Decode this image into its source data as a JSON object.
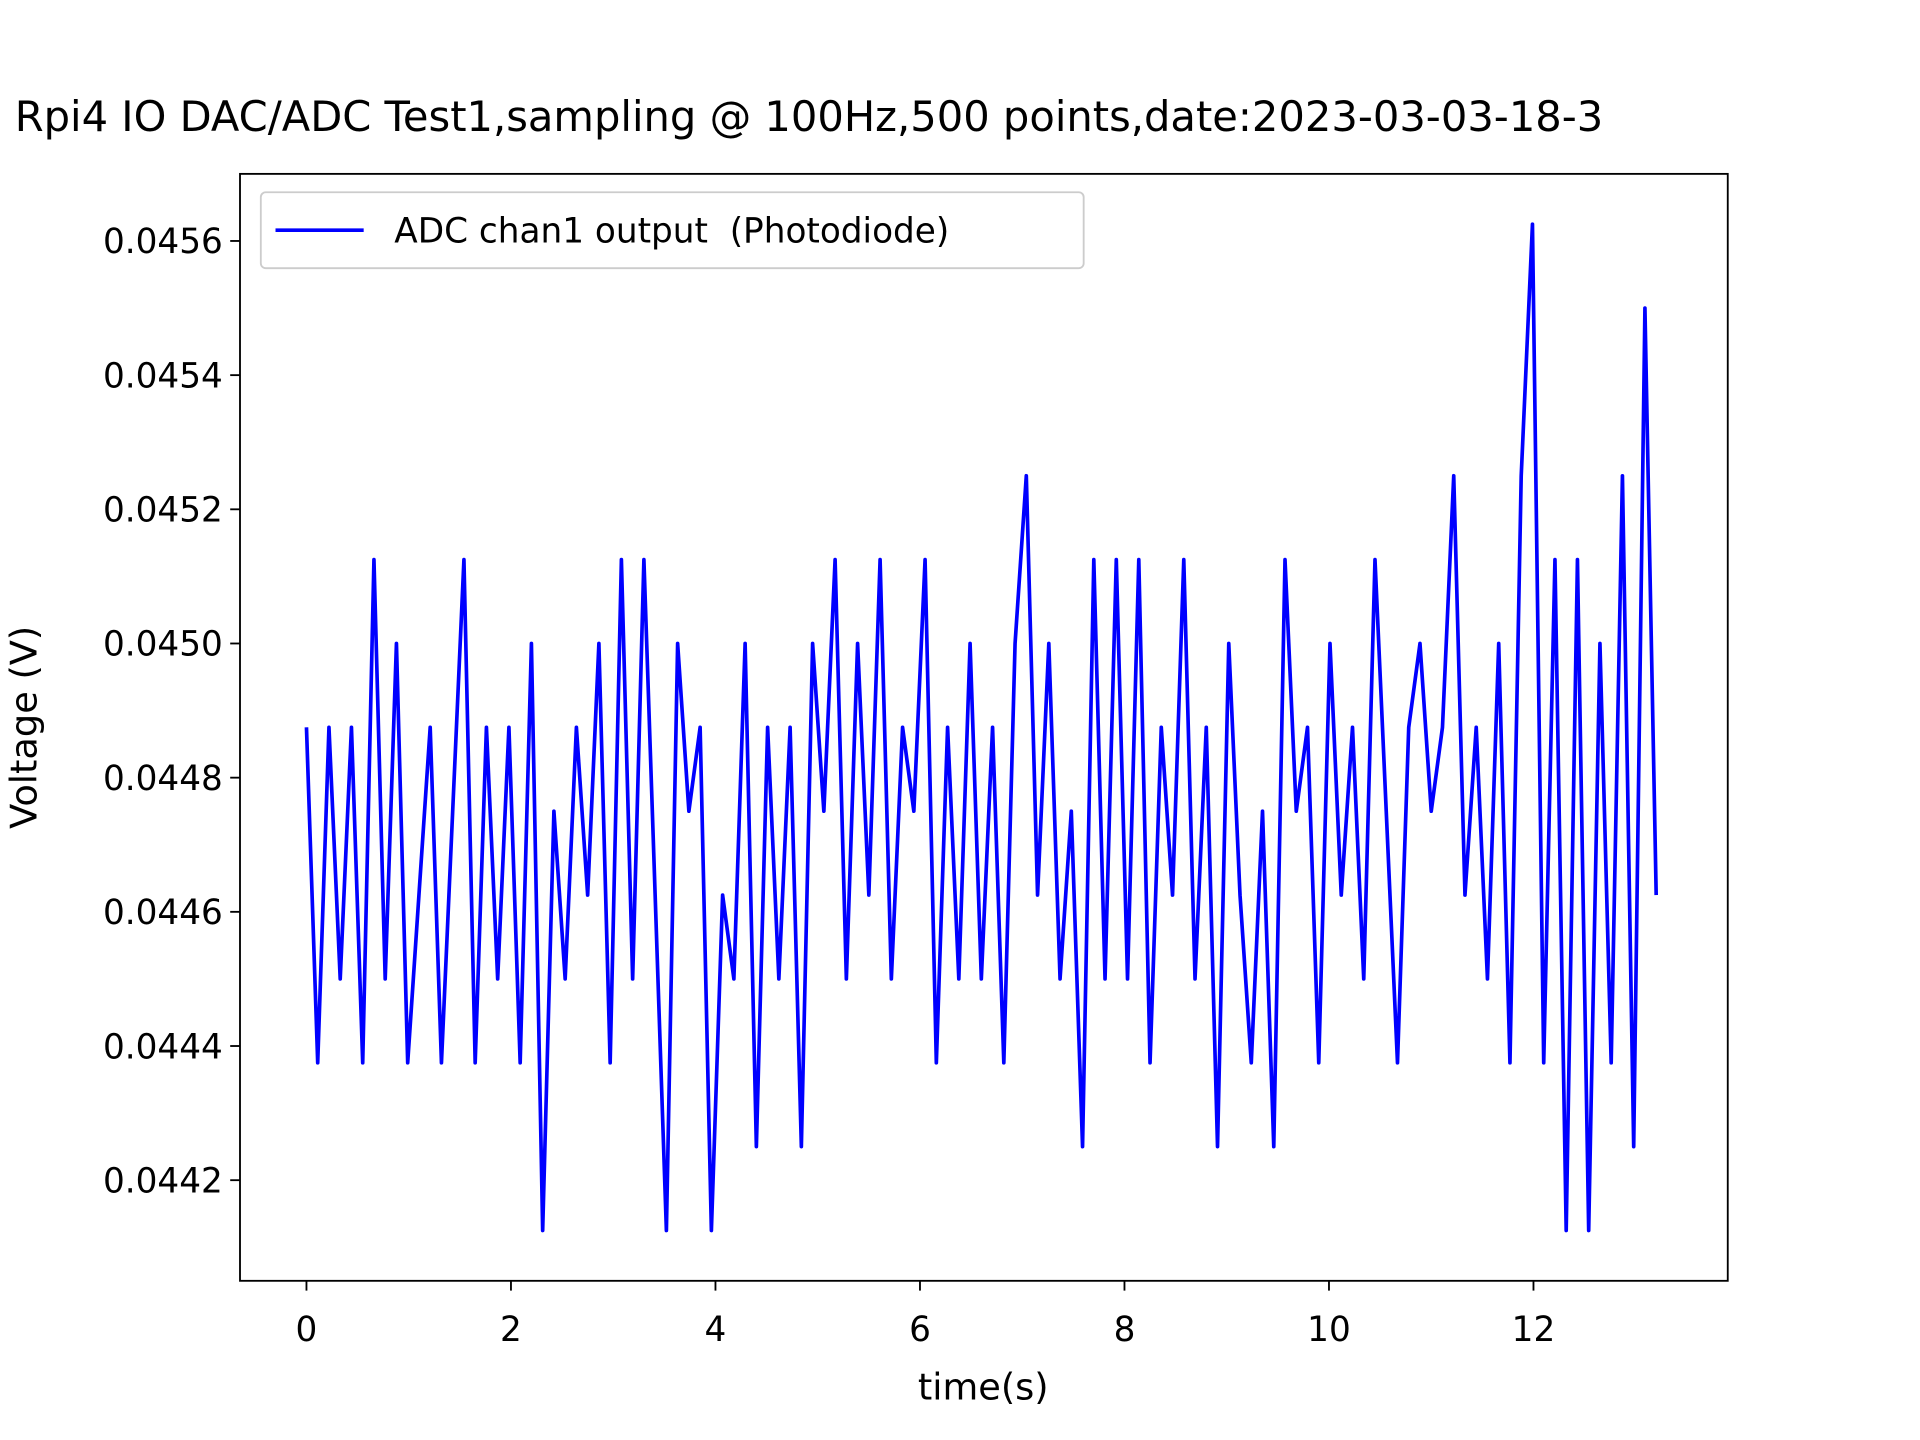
{
  "chart_data": {
    "type": "line",
    "title": "Rpi4 IO DAC/ADC Test1,sampling @ 100Hz,500 points,date:2023-03-03-18-3",
    "x_label": "time(s)",
    "y_label": "Voltage (V)",
    "xlim": [
      -0.65,
      13.9
    ],
    "ylim": [
      0.04405,
      0.0457
    ],
    "xticks": [
      0,
      2,
      4,
      6,
      8,
      10,
      12
    ],
    "yticks": [
      0.0442,
      0.0444,
      0.0446,
      0.0448,
      {
        "value": 0.045,
        "label": "0.0450"
      },
      0.0452,
      0.0454,
      0.0456
    ],
    "legend": "upper left",
    "x": [
      0,
      0.11,
      0.22,
      0.33,
      0.44,
      0.55,
      0.66,
      0.77,
      0.88,
      0.99,
      1.1,
      1.21,
      1.32,
      1.43,
      1.54,
      1.65,
      1.76,
      1.87,
      1.98,
      2.09,
      2.2,
      2.31,
      2.42,
      2.53,
      2.64,
      2.75,
      2.86,
      2.97,
      3.08,
      3.19,
      3.3,
      3.41,
      3.52,
      3.63,
      3.74,
      3.85,
      3.96,
      4.07,
      4.18,
      4.29,
      4.4,
      4.51,
      4.62,
      4.73,
      4.84,
      4.95,
      5.06,
      5.17,
      5.28,
      5.39,
      5.5,
      5.61,
      5.72,
      5.83,
      5.94,
      6.05,
      6.16,
      6.27,
      6.38,
      6.49,
      6.6,
      6.71,
      6.82,
      6.93,
      7.04,
      7.15,
      7.26,
      7.37,
      7.48,
      7.59,
      7.7,
      7.81,
      7.92,
      8.03,
      8.14,
      8.25,
      8.36,
      8.47,
      8.58,
      8.69,
      8.8,
      8.91,
      9.02,
      9.13,
      9.24,
      9.35,
      9.46,
      9.57,
      9.68,
      9.79,
      9.9,
      10.01,
      10.12,
      10.23,
      10.34,
      10.45,
      10.56,
      10.67,
      10.78,
      10.89,
      11,
      11.11,
      11.22,
      11.33,
      11.44,
      11.55,
      11.66,
      11.77,
      11.88,
      11.99,
      12.1,
      12.21,
      12.32,
      12.43,
      12.54,
      12.65,
      12.76,
      12.87,
      12.98,
      13.09,
      13.2
    ],
    "series": [
      {
        "name": "ADC chan1 output  (Photodiode)",
        "color": "#0000ff",
        "values": [
          0.044875,
          0.044375,
          0.044875,
          0.0445,
          0.044875,
          0.044375,
          0.045125,
          0.0445,
          0.045,
          0.044375,
          0.044625,
          0.044875,
          0.044375,
          0.04475,
          0.045125,
          0.044375,
          0.044875,
          0.0445,
          0.044875,
          0.044375,
          0.045,
          0.044125,
          0.04475,
          0.0445,
          0.044875,
          0.044625,
          0.045,
          0.044375,
          0.045125,
          0.0445,
          0.045125,
          0.044625,
          0.044125,
          0.045,
          0.04475,
          0.044875,
          0.044125,
          0.044625,
          0.0445,
          0.045,
          0.04425,
          0.044875,
          0.0445,
          0.044875,
          0.04425,
          0.045,
          0.04475,
          0.045125,
          0.0445,
          0.045,
          0.044625,
          0.045125,
          0.0445,
          0.044875,
          0.04475,
          0.045125,
          0.044375,
          0.044875,
          0.0445,
          0.045,
          0.0445,
          0.044875,
          0.044375,
          0.045,
          0.04525,
          0.044625,
          0.045,
          0.0445,
          0.04475,
          0.04425,
          0.045125,
          0.0445,
          0.045125,
          0.0445,
          0.045125,
          0.044375,
          0.044875,
          0.044625,
          0.045125,
          0.0445,
          0.044875,
          0.04425,
          0.045,
          0.044625,
          0.044375,
          0.04475,
          0.04425,
          0.045125,
          0.04475,
          0.044875,
          0.044375,
          0.045,
          0.044625,
          0.044875,
          0.0445,
          0.045125,
          0.04475,
          0.044375,
          0.044875,
          0.045,
          0.04475,
          0.044875,
          0.04525,
          0.044625,
          0.044875,
          0.0445,
          0.045,
          0.044375,
          0.04525,
          0.045625,
          0.044375,
          0.045125,
          0.044125,
          0.045125,
          0.044125,
          0.045,
          0.044375,
          0.04525,
          0.04425,
          0.0455,
          0.044625
        ]
      }
    ]
  }
}
